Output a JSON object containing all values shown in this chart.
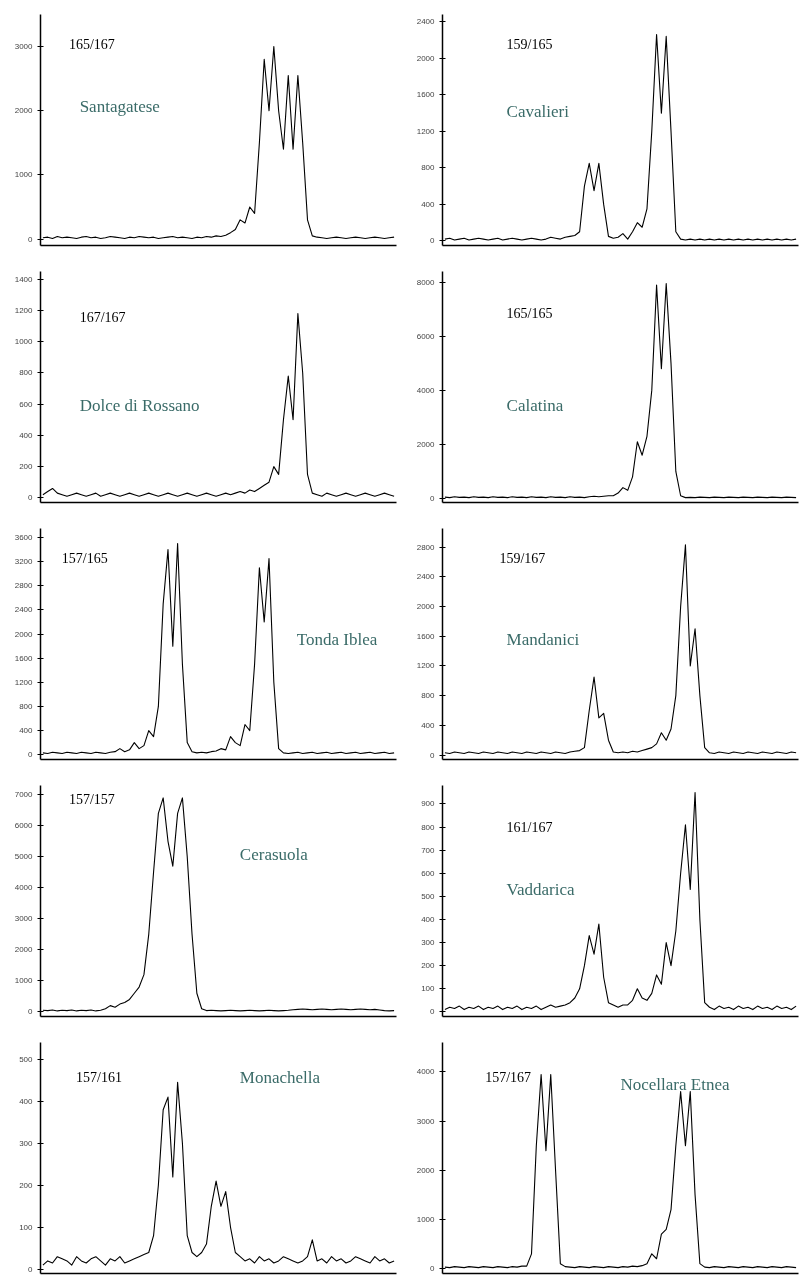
{
  "chart_data": [
    {
      "type": "line",
      "tick_labels": "y",
      "color": "#000000",
      "ylim": [
        -100,
        3500
      ],
      "yticks": [
        0,
        1000,
        2000,
        3000
      ],
      "annotations": [
        "165/167",
        "Santagatese"
      ],
      "categories": [
        null,
        null,
        null,
        null,
        null,
        null,
        null,
        null,
        null,
        null,
        null,
        null,
        null,
        null,
        null,
        null,
        null,
        null,
        null,
        null,
        null,
        null,
        null,
        null,
        null,
        null,
        null,
        null,
        null,
        null,
        null,
        null,
        null,
        null,
        null,
        null,
        null,
        null,
        null,
        null,
        null,
        null,
        null,
        null,
        null,
        null,
        null,
        null,
        null,
        null,
        null,
        null,
        null,
        null,
        null,
        null,
        null,
        null,
        null,
        null,
        null,
        null,
        null,
        null,
        null,
        null,
        null,
        null,
        null,
        null,
        null,
        null,
        null,
        null
      ],
      "values": [
        20,
        30,
        10,
        40,
        20,
        30,
        20,
        10,
        30,
        40,
        20,
        30,
        10,
        20,
        40,
        30,
        20,
        10,
        30,
        20,
        40,
        30,
        20,
        30,
        10,
        20,
        30,
        40,
        20,
        30,
        20,
        10,
        30,
        20,
        40,
        30,
        50,
        40,
        60,
        100,
        150,
        300,
        250,
        500,
        400,
        1500,
        2800,
        2000,
        3000,
        2000,
        1400,
        2550,
        1400,
        2550,
        1500,
        300,
        50,
        30,
        20,
        10,
        20,
        30,
        20,
        10,
        20,
        30,
        20,
        10,
        20,
        30,
        20,
        10,
        20,
        30
      ]
    },
    {
      "type": "line",
      "tick_labels": "y",
      "color": "#000000",
      "ylim": [
        -50,
        2480
      ],
      "yticks": [
        0,
        400,
        800,
        1200,
        1600,
        2000,
        2400
      ],
      "annotations": [
        "159/165",
        "Cavalieri"
      ],
      "categories": [
        null,
        null,
        null,
        null,
        null,
        null,
        null,
        null,
        null,
        null,
        null,
        null,
        null,
        null,
        null,
        null,
        null,
        null,
        null,
        null,
        null,
        null,
        null,
        null,
        null,
        null,
        null,
        null,
        null,
        null,
        null,
        null,
        null,
        null,
        null,
        null,
        null,
        null,
        null,
        null,
        null,
        null,
        null,
        null,
        null,
        null,
        null,
        null,
        null,
        null,
        null,
        null,
        null,
        null,
        null,
        null,
        null,
        null,
        null,
        null,
        null,
        null,
        null,
        null,
        null,
        null,
        null,
        null,
        null,
        null,
        null,
        null,
        null,
        null
      ],
      "values": [
        20,
        30,
        10,
        20,
        30,
        10,
        20,
        30,
        20,
        10,
        20,
        30,
        10,
        20,
        30,
        20,
        10,
        20,
        30,
        20,
        10,
        20,
        40,
        30,
        20,
        40,
        50,
        60,
        100,
        600,
        850,
        550,
        850,
        400,
        50,
        30,
        40,
        80,
        20,
        100,
        200,
        150,
        350,
        1200,
        2260,
        1400,
        2240,
        1200,
        100,
        20,
        10,
        20,
        10,
        20,
        10,
        20,
        10,
        20,
        10,
        20,
        10,
        20,
        10,
        20,
        10,
        20,
        10,
        20,
        10,
        20,
        10,
        20,
        10,
        20
      ]
    },
    {
      "type": "line",
      "tick_labels": "y",
      "color": "#000000",
      "ylim": [
        -30,
        1450
      ],
      "yticks": [
        0,
        200,
        400,
        600,
        800,
        1000,
        1200,
        1400
      ],
      "annotations": [
        "167/167",
        "Dolce di Rossano"
      ],
      "categories": [
        null,
        null,
        null,
        null,
        null,
        null,
        null,
        null,
        null,
        null,
        null,
        null,
        null,
        null,
        null,
        null,
        null,
        null,
        null,
        null,
        null,
        null,
        null,
        null,
        null,
        null,
        null,
        null,
        null,
        null,
        null,
        null,
        null,
        null,
        null,
        null,
        null,
        null,
        null,
        null,
        null,
        null,
        null,
        null,
        null,
        null,
        null,
        null,
        null,
        null,
        null,
        null,
        null,
        null,
        null,
        null,
        null,
        null,
        null,
        null,
        null,
        null,
        null,
        null,
        null,
        null,
        null,
        null,
        null,
        null,
        null,
        null,
        null,
        null
      ],
      "values": [
        20,
        40,
        60,
        30,
        20,
        10,
        20,
        30,
        20,
        10,
        20,
        30,
        10,
        20,
        30,
        20,
        10,
        20,
        30,
        20,
        10,
        20,
        30,
        20,
        10,
        20,
        30,
        20,
        10,
        20,
        30,
        20,
        10,
        20,
        30,
        20,
        10,
        20,
        30,
        20,
        30,
        40,
        30,
        50,
        40,
        60,
        80,
        100,
        200,
        150,
        500,
        780,
        500,
        1180,
        800,
        150,
        30,
        20,
        10,
        30,
        20,
        10,
        20,
        30,
        20,
        10,
        20,
        30,
        20,
        10,
        20,
        30,
        20,
        10
      ]
    },
    {
      "type": "line",
      "tick_labels": "y",
      "color": "#000000",
      "ylim": [
        -150,
        8400
      ],
      "yticks": [
        0,
        2000,
        4000,
        6000,
        8000
      ],
      "annotations": [
        "165/165",
        "Calatina"
      ],
      "categories": [
        null,
        null,
        null,
        null,
        null,
        null,
        null,
        null,
        null,
        null,
        null,
        null,
        null,
        null,
        null,
        null,
        null,
        null,
        null,
        null,
        null,
        null,
        null,
        null,
        null,
        null,
        null,
        null,
        null,
        null,
        null,
        null,
        null,
        null,
        null,
        null,
        null,
        null,
        null,
        null,
        null,
        null,
        null,
        null,
        null,
        null,
        null,
        null,
        null,
        null,
        null,
        null,
        null,
        null,
        null,
        null,
        null,
        null,
        null,
        null,
        null,
        null,
        null,
        null,
        null,
        null,
        null,
        null,
        null,
        null,
        null,
        null,
        null,
        null
      ],
      "values": [
        50,
        30,
        60,
        40,
        50,
        30,
        60,
        40,
        50,
        30,
        60,
        40,
        50,
        30,
        60,
        40,
        50,
        30,
        60,
        40,
        50,
        30,
        60,
        40,
        50,
        30,
        60,
        40,
        50,
        30,
        60,
        80,
        60,
        80,
        100,
        100,
        200,
        400,
        300,
        800,
        2100,
        1600,
        2300,
        4000,
        7900,
        4800,
        7950,
        5000,
        1000,
        100,
        30,
        40,
        30,
        50,
        40,
        30,
        50,
        40,
        30,
        50,
        40,
        30,
        50,
        40,
        30,
        50,
        40,
        30,
        50,
        40,
        30,
        50,
        40,
        30
      ]
    },
    {
      "type": "line",
      "tick_labels": "y",
      "color": "#000000",
      "ylim": [
        -80,
        3750
      ],
      "yticks": [
        0,
        400,
        800,
        1200,
        1600,
        2000,
        2400,
        2800,
        3200,
        3600
      ],
      "annotations": [
        "157/165",
        "Tonda Iblea"
      ],
      "categories": [
        null,
        null,
        null,
        null,
        null,
        null,
        null,
        null,
        null,
        null,
        null,
        null,
        null,
        null,
        null,
        null,
        null,
        null,
        null,
        null,
        null,
        null,
        null,
        null,
        null,
        null,
        null,
        null,
        null,
        null,
        null,
        null,
        null,
        null,
        null,
        null,
        null,
        null,
        null,
        null,
        null,
        null,
        null,
        null,
        null,
        null,
        null,
        null,
        null,
        null,
        null,
        null,
        null,
        null,
        null,
        null,
        null,
        null,
        null,
        null,
        null,
        null,
        null,
        null,
        null,
        null,
        null,
        null,
        null,
        null,
        null,
        null,
        null,
        null
      ],
      "values": [
        30,
        20,
        40,
        30,
        20,
        40,
        30,
        20,
        40,
        30,
        20,
        40,
        30,
        20,
        40,
        50,
        100,
        50,
        80,
        200,
        100,
        150,
        400,
        300,
        800,
        2500,
        3400,
        1800,
        3500,
        1500,
        200,
        50,
        30,
        40,
        30,
        50,
        60,
        100,
        80,
        300,
        200,
        150,
        500,
        400,
        1500,
        3100,
        2200,
        3250,
        1200,
        100,
        30,
        20,
        30,
        40,
        20,
        30,
        40,
        20,
        30,
        40,
        20,
        30,
        40,
        20,
        30,
        40,
        20,
        30,
        40,
        20,
        30,
        40,
        20,
        30
      ]
    },
    {
      "type": "line",
      "tick_labels": "y",
      "color": "#000000",
      "ylim": [
        -60,
        3050
      ],
      "yticks": [
        0,
        400,
        800,
        1200,
        1600,
        2000,
        2400,
        2800
      ],
      "annotations": [
        "159/167",
        "Mandanici"
      ],
      "categories": [
        null,
        null,
        null,
        null,
        null,
        null,
        null,
        null,
        null,
        null,
        null,
        null,
        null,
        null,
        null,
        null,
        null,
        null,
        null,
        null,
        null,
        null,
        null,
        null,
        null,
        null,
        null,
        null,
        null,
        null,
        null,
        null,
        null,
        null,
        null,
        null,
        null,
        null,
        null,
        null,
        null,
        null,
        null,
        null,
        null,
        null,
        null,
        null,
        null,
        null,
        null,
        null,
        null,
        null,
        null,
        null,
        null,
        null,
        null,
        null,
        null,
        null,
        null,
        null,
        null,
        null,
        null,
        null,
        null,
        null,
        null,
        null,
        null,
        null
      ],
      "values": [
        30,
        20,
        40,
        30,
        20,
        40,
        30,
        20,
        40,
        30,
        20,
        40,
        30,
        20,
        40,
        30,
        20,
        40,
        30,
        20,
        40,
        30,
        20,
        40,
        30,
        20,
        40,
        50,
        60,
        100,
        600,
        1050,
        500,
        560,
        200,
        40,
        30,
        40,
        30,
        50,
        40,
        60,
        80,
        100,
        150,
        300,
        200,
        350,
        800,
        2000,
        2830,
        1200,
        1700,
        800,
        100,
        30,
        20,
        40,
        30,
        20,
        40,
        30,
        20,
        40,
        30,
        20,
        40,
        30,
        20,
        40,
        30,
        20,
        40,
        30
      ]
    },
    {
      "type": "line",
      "tick_labels": "y",
      "color": "#000000",
      "ylim": [
        -150,
        7300
      ],
      "yticks": [
        0,
        1000,
        2000,
        3000,
        4000,
        5000,
        6000,
        7000
      ],
      "annotations": [
        "157/157",
        "Cerasuola"
      ],
      "categories": [
        null,
        null,
        null,
        null,
        null,
        null,
        null,
        null,
        null,
        null,
        null,
        null,
        null,
        null,
        null,
        null,
        null,
        null,
        null,
        null,
        null,
        null,
        null,
        null,
        null,
        null,
        null,
        null,
        null,
        null,
        null,
        null,
        null,
        null,
        null,
        null,
        null,
        null,
        null,
        null,
        null,
        null,
        null,
        null,
        null,
        null,
        null,
        null,
        null,
        null,
        null,
        null,
        null,
        null,
        null,
        null,
        null,
        null,
        null,
        null,
        null,
        null,
        null,
        null,
        null,
        null,
        null,
        null,
        null,
        null,
        null,
        null,
        null,
        null
      ],
      "values": [
        50,
        40,
        60,
        30,
        50,
        40,
        60,
        30,
        50,
        40,
        60,
        30,
        50,
        100,
        200,
        150,
        250,
        300,
        400,
        600,
        800,
        1200,
        2500,
        4500,
        6400,
        6900,
        5500,
        4700,
        6400,
        6900,
        5000,
        2500,
        600,
        100,
        40,
        50,
        40,
        30,
        40,
        50,
        40,
        30,
        40,
        50,
        40,
        30,
        40,
        50,
        40,
        30,
        40,
        50,
        70,
        80,
        90,
        80,
        70,
        80,
        90,
        80,
        70,
        80,
        90,
        80,
        70,
        80,
        90,
        80,
        70,
        80,
        60,
        40,
        30,
        40
      ]
    },
    {
      "type": "line",
      "tick_labels": "y",
      "color": "#000000",
      "ylim": [
        -20,
        980
      ],
      "yticks": [
        0,
        100,
        200,
        300,
        400,
        500,
        600,
        700,
        800,
        900
      ],
      "annotations": [
        "161/167",
        "Vaddarica"
      ],
      "categories": [
        null,
        null,
        null,
        null,
        null,
        null,
        null,
        null,
        null,
        null,
        null,
        null,
        null,
        null,
        null,
        null,
        null,
        null,
        null,
        null,
        null,
        null,
        null,
        null,
        null,
        null,
        null,
        null,
        null,
        null,
        null,
        null,
        null,
        null,
        null,
        null,
        null,
        null,
        null,
        null,
        null,
        null,
        null,
        null,
        null,
        null,
        null,
        null,
        null,
        null,
        null,
        null,
        null,
        null,
        null,
        null,
        null,
        null,
        null,
        null,
        null,
        null,
        null,
        null,
        null,
        null,
        null,
        null,
        null,
        null,
        null,
        null,
        null,
        null
      ],
      "values": [
        10,
        20,
        15,
        25,
        10,
        20,
        15,
        25,
        10,
        20,
        15,
        25,
        10,
        20,
        15,
        25,
        10,
        20,
        15,
        25,
        10,
        20,
        30,
        20,
        25,
        30,
        40,
        60,
        100,
        200,
        330,
        250,
        380,
        150,
        40,
        30,
        20,
        30,
        30,
        50,
        100,
        60,
        50,
        80,
        160,
        120,
        300,
        200,
        350,
        600,
        810,
        530,
        950,
        400,
        40,
        20,
        10,
        25,
        15,
        20,
        10,
        25,
        15,
        20,
        10,
        25,
        15,
        20,
        10,
        25,
        15,
        20,
        10,
        25
      ]
    },
    {
      "type": "line",
      "tick_labels": "y",
      "color": "#000000",
      "ylim": [
        -10,
        540
      ],
      "yticks": [
        0,
        100,
        200,
        300,
        400,
        500
      ],
      "annotations": [
        "157/161",
        "Monachella"
      ],
      "categories": [
        null,
        null,
        null,
        null,
        null,
        null,
        null,
        null,
        null,
        null,
        null,
        null,
        null,
        null,
        null,
        null,
        null,
        null,
        null,
        null,
        null,
        null,
        null,
        null,
        null,
        null,
        null,
        null,
        null,
        null,
        null,
        null,
        null,
        null,
        null,
        null,
        null,
        null,
        null,
        null,
        null,
        null,
        null,
        null,
        null,
        null,
        null,
        null,
        null,
        null,
        null,
        null,
        null,
        null,
        null,
        null,
        null,
        null,
        null,
        null,
        null,
        null,
        null,
        null,
        null,
        null,
        null,
        null,
        null,
        null,
        null,
        null,
        null,
        null
      ],
      "values": [
        10,
        20,
        15,
        30,
        25,
        20,
        10,
        30,
        20,
        15,
        25,
        30,
        20,
        10,
        25,
        20,
        30,
        15,
        20,
        25,
        30,
        35,
        40,
        80,
        200,
        380,
        410,
        220,
        445,
        300,
        80,
        40,
        30,
        40,
        60,
        150,
        210,
        150,
        185,
        100,
        40,
        30,
        20,
        25,
        15,
        30,
        20,
        25,
        15,
        20,
        30,
        25,
        20,
        15,
        20,
        30,
        70,
        20,
        25,
        15,
        30,
        20,
        25,
        15,
        20,
        30,
        25,
        20,
        15,
        30,
        20,
        25,
        15,
        20
      ]
    },
    {
      "type": "line",
      "tick_labels": "y",
      "color": "#000000",
      "ylim": [
        -100,
        4600
      ],
      "yticks": [
        0,
        1000,
        2000,
        3000,
        4000
      ],
      "annotations": [
        "157/167",
        "Nocellara Etnea"
      ],
      "categories": [
        null,
        null,
        null,
        null,
        null,
        null,
        null,
        null,
        null,
        null,
        null,
        null,
        null,
        null,
        null,
        null,
        null,
        null,
        null,
        null,
        null,
        null,
        null,
        null,
        null,
        null,
        null,
        null,
        null,
        null,
        null,
        null,
        null,
        null,
        null,
        null,
        null,
        null,
        null,
        null,
        null,
        null,
        null,
        null,
        null,
        null,
        null,
        null,
        null,
        null,
        null,
        null,
        null,
        null,
        null,
        null,
        null,
        null,
        null,
        null,
        null,
        null,
        null,
        null,
        null,
        null,
        null,
        null,
        null,
        null,
        null,
        null,
        null,
        null
      ],
      "values": [
        30,
        20,
        40,
        30,
        20,
        40,
        30,
        20,
        40,
        30,
        20,
        40,
        30,
        20,
        40,
        30,
        50,
        50,
        300,
        2500,
        3950,
        2400,
        3950,
        2000,
        100,
        40,
        30,
        20,
        40,
        30,
        20,
        40,
        30,
        20,
        40,
        30,
        20,
        40,
        30,
        50,
        40,
        60,
        100,
        300,
        200,
        700,
        800,
        1200,
        2500,
        3600,
        2500,
        3600,
        1500,
        100,
        30,
        20,
        40,
        30,
        20,
        40,
        30,
        20,
        40,
        30,
        20,
        40,
        30,
        20,
        40,
        30,
        20,
        40,
        30,
        20
      ]
    }
  ]
}
